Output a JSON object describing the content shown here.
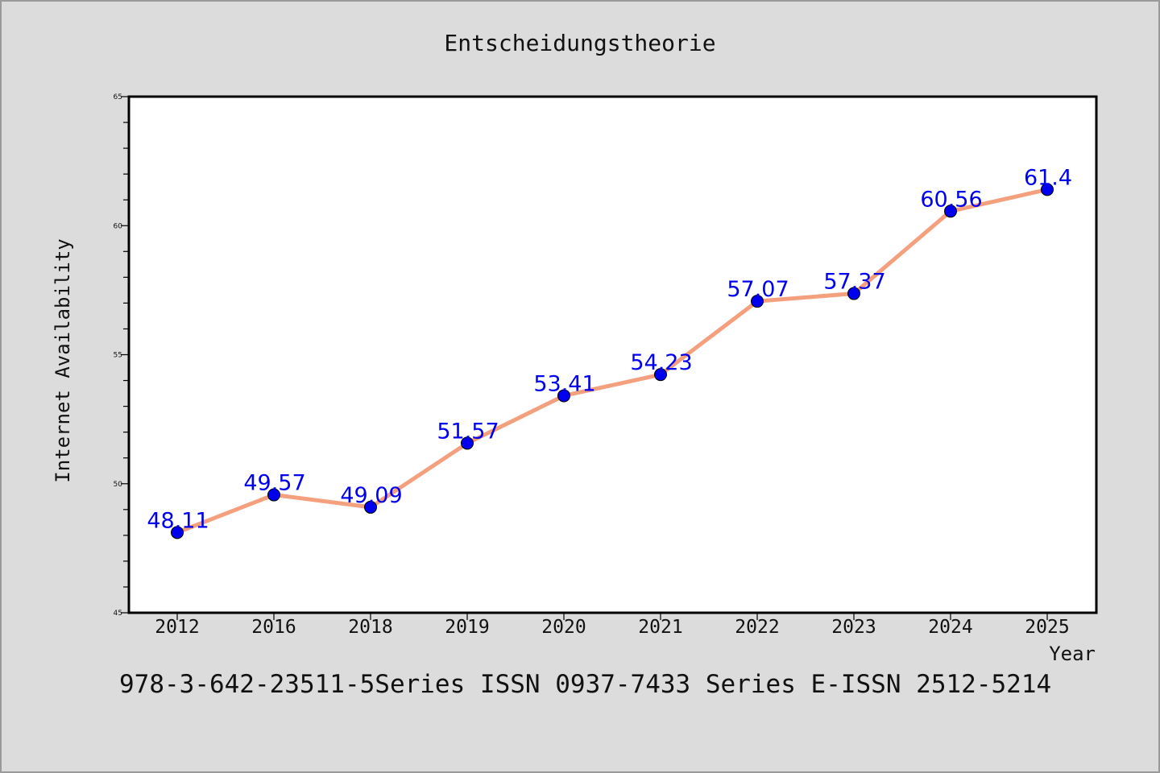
{
  "chart_data": {
    "type": "line",
    "title": "Entscheidungstheorie",
    "xlabel": "Year",
    "ylabel": "Internet Availability",
    "categories": [
      "2012",
      "2016",
      "2018",
      "2019",
      "2020",
      "2021",
      "2022",
      "2023",
      "2024",
      "2025"
    ],
    "series": [
      {
        "values": [
          48.11,
          49.57,
          49.09,
          51.57,
          53.41,
          54.23,
          57.07,
          57.37,
          60.56,
          61.4
        ],
        "labels": [
          "48.11",
          "49.57",
          "49.09",
          "51.57",
          "53.41",
          "54.23",
          "57.07",
          "57.37",
          "60.56",
          "61.4"
        ],
        "line_color": "#f4a07e",
        "marker_color": "#0000ee",
        "label_color": "#0000ee"
      }
    ],
    "ylim": [
      45,
      65
    ],
    "yticks": [
      "45",
      "50",
      "55",
      "60",
      "65"
    ],
    "grid": false
  },
  "footer": {
    "caption": "978-3-642-23511-5Series ISSN 0937-7433 Series E-ISSN 2512-5214"
  },
  "colors": {
    "page_background": "#dcdcdc",
    "plot_background": "#ffffff",
    "frame": "#000000"
  }
}
